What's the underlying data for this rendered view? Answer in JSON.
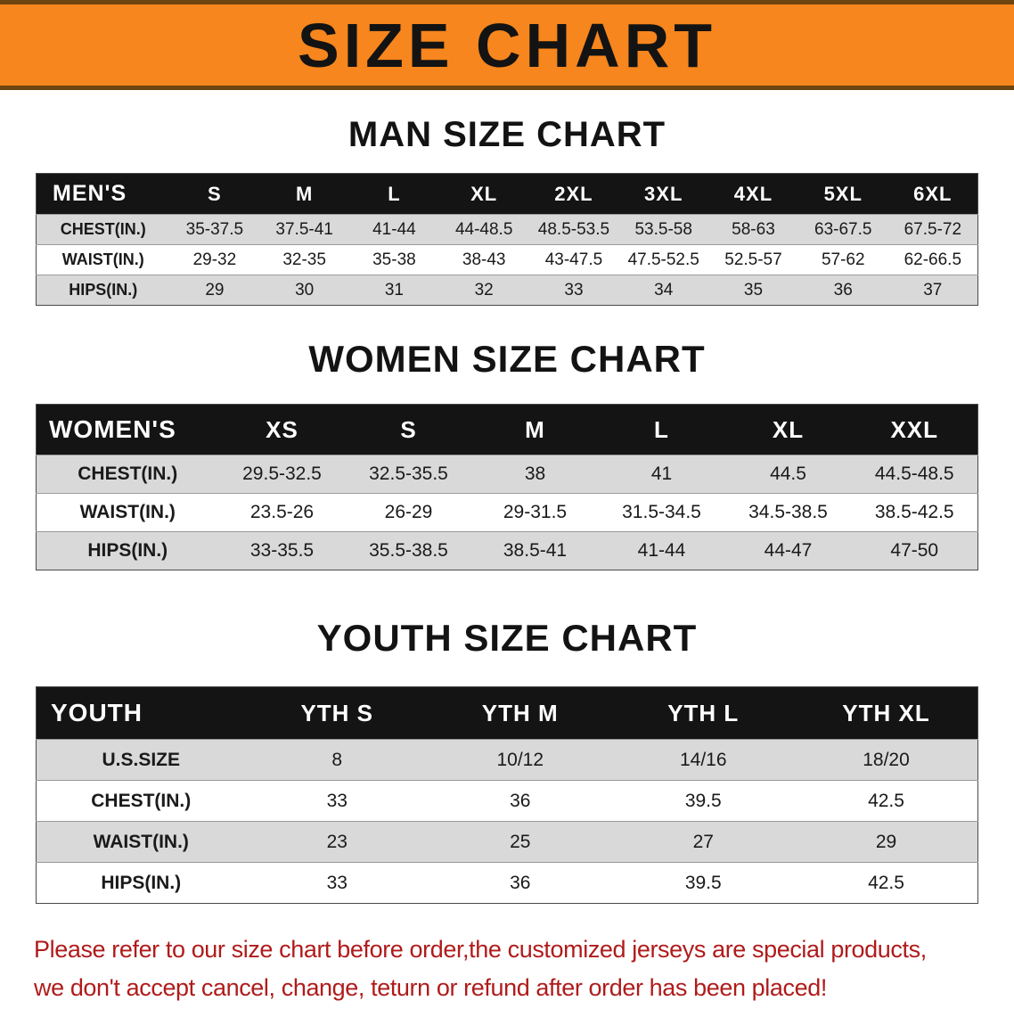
{
  "banner": {
    "title": "SIZE CHART",
    "bg_color": "#f6861d"
  },
  "sections": [
    {
      "id": "men",
      "heading": "MAN SIZE CHART",
      "table": {
        "corner_label": "MEN'S",
        "size_columns": [
          "S",
          "M",
          "L",
          "XL",
          "2XL",
          "3XL",
          "4XL",
          "5XL",
          "6XL"
        ],
        "rows": [
          {
            "label": "CHEST(IN.)",
            "values": [
              "35-37.5",
              "37.5-41",
              "41-44",
              "44-48.5",
              "48.5-53.5",
              "53.5-58",
              "58-63",
              "63-67.5",
              "67.5-72"
            ]
          },
          {
            "label": "WAIST(IN.)",
            "values": [
              "29-32",
              "32-35",
              "35-38",
              "38-43",
              "43-47.5",
              "47.5-52.5",
              "52.5-57",
              "57-62",
              "62-66.5"
            ]
          },
          {
            "label": "HIPS(IN.)",
            "values": [
              "29",
              "30",
              "31",
              "32",
              "33",
              "34",
              "35",
              "36",
              "37"
            ]
          }
        ]
      }
    },
    {
      "id": "women",
      "heading": "WOMEN SIZE CHART",
      "table": {
        "corner_label": "WOMEN'S",
        "size_columns": [
          "XS",
          "S",
          "M",
          "L",
          "XL",
          "XXL"
        ],
        "rows": [
          {
            "label": "CHEST(IN.)",
            "values": [
              "29.5-32.5",
              "32.5-35.5",
              "38",
              "41",
              "44.5",
              "44.5-48.5"
            ]
          },
          {
            "label": "WAIST(IN.)",
            "values": [
              "23.5-26",
              "26-29",
              "29-31.5",
              "31.5-34.5",
              "34.5-38.5",
              "38.5-42.5"
            ]
          },
          {
            "label": "HIPS(IN.)",
            "values": [
              "33-35.5",
              "35.5-38.5",
              "38.5-41",
              "41-44",
              "44-47",
              "47-50"
            ]
          }
        ]
      }
    },
    {
      "id": "youth",
      "heading": "YOUTH SIZE CHART",
      "table": {
        "corner_label": "YOUTH",
        "size_columns": [
          "YTH S",
          "YTH M",
          "YTH L",
          "YTH XL"
        ],
        "rows": [
          {
            "label": "U.S.SIZE",
            "values": [
              "8",
              "10/12",
              "14/16",
              "18/20"
            ]
          },
          {
            "label": "CHEST(IN.)",
            "values": [
              "33",
              "36",
              "39.5",
              "42.5"
            ]
          },
          {
            "label": "WAIST(IN.)",
            "values": [
              "23",
              "25",
              "27",
              "29"
            ]
          },
          {
            "label": "HIPS(IN.)",
            "values": [
              "33",
              "36",
              "39.5",
              "42.5"
            ]
          }
        ]
      }
    }
  ],
  "disclaimer": {
    "line1": "Please refer to our size chart before order,the customized jerseys are special products,",
    "line2": "we don't accept cancel, change, teturn or refund after order has been placed!",
    "text_color": "#b01b1b"
  }
}
